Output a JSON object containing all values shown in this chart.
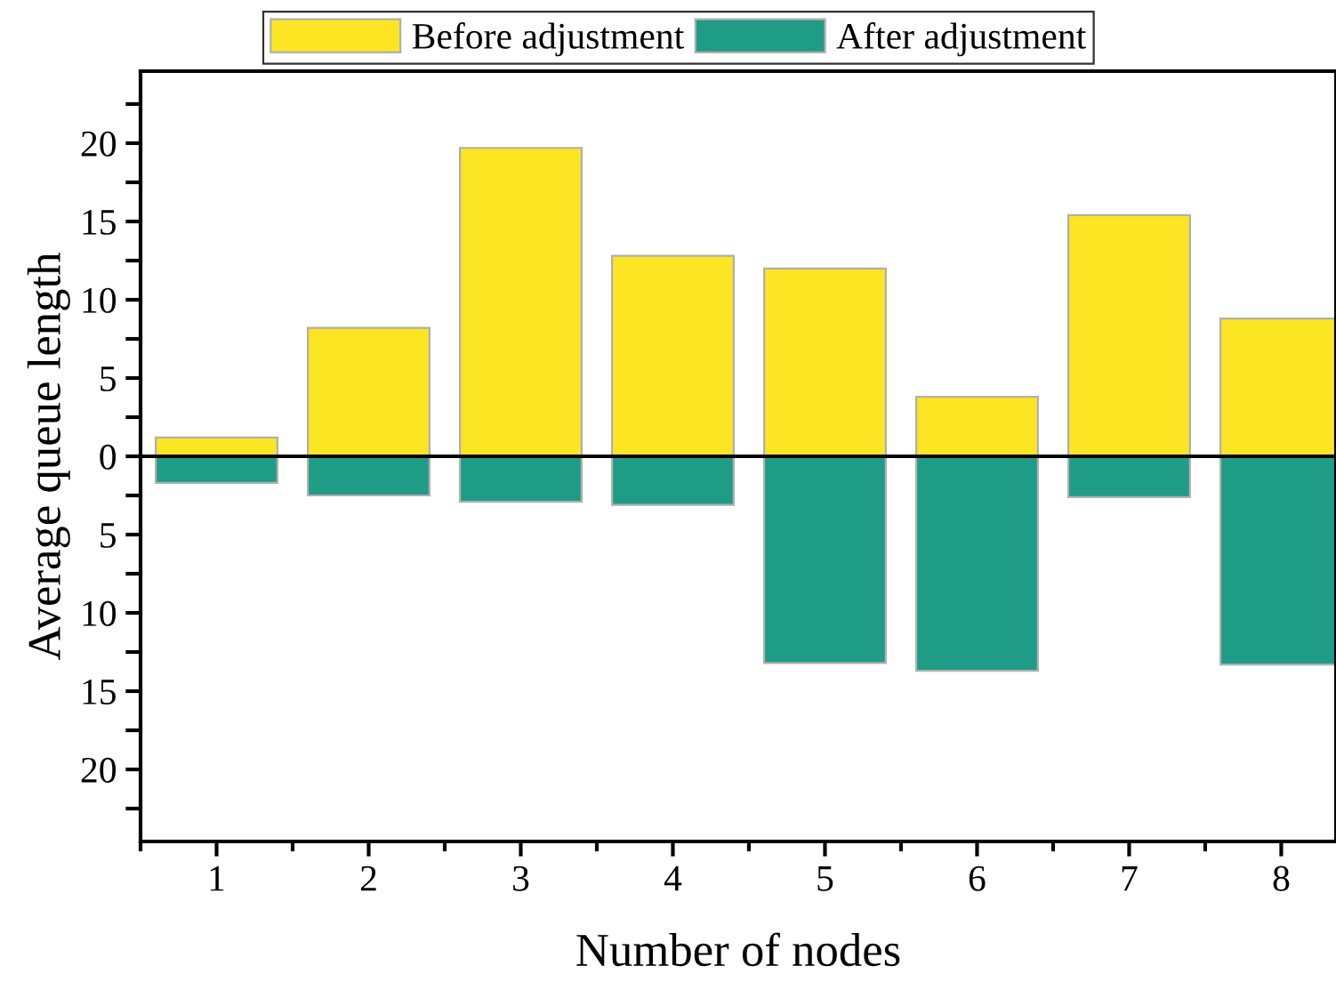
{
  "chart_data": {
    "type": "bar",
    "xlabel": "Number of nodes",
    "ylabel": "Average queue length",
    "categories": [
      "1",
      "2",
      "3",
      "4",
      "5",
      "6",
      "7",
      "8"
    ],
    "series": [
      {
        "name": "Before adjustment",
        "color": "#fce522",
        "values": [
          1.2,
          8.2,
          19.7,
          12.8,
          12.0,
          3.8,
          15.4,
          8.8
        ]
      },
      {
        "name": "After adjustment",
        "color": "#1f9c86",
        "values": [
          -1.7,
          -2.5,
          -2.9,
          -3.1,
          -13.2,
          -13.7,
          -2.6,
          -13.3
        ]
      }
    ],
    "ylim": [
      -24.6,
      24.6
    ],
    "yticks": [
      {
        "value": -22.5,
        "label": null
      },
      {
        "value": -20,
        "label": "20"
      },
      {
        "value": -17.5,
        "label": null
      },
      {
        "value": -15,
        "label": "15"
      },
      {
        "value": -12.5,
        "label": null
      },
      {
        "value": -10,
        "label": "10"
      },
      {
        "value": -7.5,
        "label": null
      },
      {
        "value": -5,
        "label": "5"
      },
      {
        "value": -2.5,
        "label": null
      },
      0,
      {
        "value": 2.5,
        "label": null
      },
      5,
      {
        "value": 7.5,
        "label": null
      },
      10,
      {
        "value": 12.5,
        "label": null
      },
      15,
      {
        "value": 17.5,
        "label": null
      },
      20,
      {
        "value": 22.5,
        "label": null
      }
    ],
    "ref_lines": [
      {
        "axis": "y",
        "value": 0,
        "color": "#000000"
      }
    ],
    "legend": "top",
    "grid": false,
    "stacked": true
  }
}
